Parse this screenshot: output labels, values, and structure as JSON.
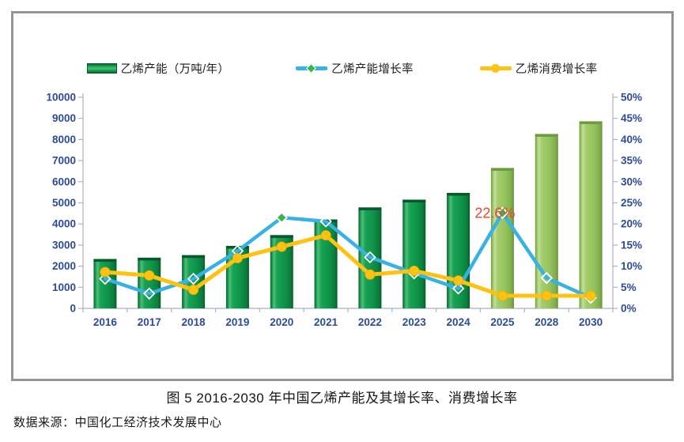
{
  "legend": {
    "items": [
      {
        "label": "乙烯产能（万吨/年）"
      },
      {
        "label": "乙烯产能增长率"
      },
      {
        "label": "乙烯消费增长率"
      }
    ]
  },
  "chart_data": {
    "type": "bar+line",
    "categories": [
      "2016",
      "2017",
      "2018",
      "2019",
      "2020",
      "2021",
      "2022",
      "2023",
      "2024",
      "2025",
      "2028",
      "2030"
    ],
    "series": [
      {
        "name": "乙烯产能（万吨/年）",
        "type": "bar",
        "axis": "left",
        "values": [
          2340,
          2400,
          2520,
          2960,
          3470,
          4210,
          4780,
          5150,
          5470,
          6650,
          8260,
          8860
        ],
        "color": "#149a4c",
        "forecast_color": "#9cc863",
        "forecast_indices": [
          9,
          10,
          11
        ]
      },
      {
        "name": "乙烯产能增长率",
        "type": "line",
        "axis": "right",
        "values": [
          7.0,
          3.5,
          7.0,
          13.6,
          21.5,
          20.6,
          12.1,
          8.3,
          4.7,
          22.6,
          7.2,
          2.5
        ],
        "color": "#38b1e4",
        "marker": "diamond",
        "marker_green_indices": [
          4,
          9
        ],
        "marker_green_color": "#3cb54a"
      },
      {
        "name": "乙烯消费增长率",
        "type": "line",
        "axis": "right",
        "values": [
          8.6,
          7.8,
          4.4,
          11.9,
          14.6,
          17.3,
          8.0,
          8.9,
          6.6,
          3.0,
          3.0,
          3.0
        ],
        "color": "#fec312",
        "marker": "circle"
      }
    ],
    "left_axis": {
      "min": 0,
      "max": 10000,
      "step": 1000
    },
    "right_axis": {
      "min": 0,
      "max": 50,
      "step": 5,
      "suffix": "%"
    },
    "annotation": {
      "text": "22.6%",
      "category": "2025",
      "series_index": 1,
      "color": "#e8432d"
    },
    "grid": false,
    "legend_position": "top"
  },
  "caption": "图 5 2016-2030 年中国乙烯产能及其增长率、消费增长率",
  "source": "数据来源：中国化工经济技术发展中心"
}
